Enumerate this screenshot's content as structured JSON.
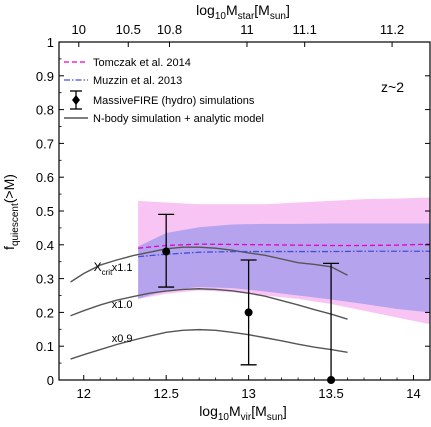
{
  "chart_data": {
    "type": "line",
    "xlabel": "log",
    "xlabel_sub": "10",
    "xlabel_main": "M",
    "xlabel_sub2": "vir",
    "xlabel_unit": "[M",
    "xlabel_unit_sub": "sun",
    "xlabel_end": "]",
    "top_xlabel": "log",
    "top_xlabel_sub": "10",
    "top_xlabel_main": "M",
    "top_xlabel_sub2": "star",
    "top_xlabel_unit": "[M",
    "top_xlabel_unit_sub": "sun",
    "top_xlabel_end": "]",
    "ylabel": "f",
    "ylabel_sub": "quiescent",
    "ylabel_end": "(>M)",
    "xlim": [
      11.85,
      14.1
    ],
    "ylim": [
      0,
      1
    ],
    "x_ticks": [
      "12",
      "12.5",
      "13",
      "13.5",
      "14"
    ],
    "x_tick_values": [
      12,
      12.5,
      13,
      13.5,
      14
    ],
    "y_ticks": [
      "0",
      "0.1",
      "0.2",
      "0.3",
      "0.4",
      "0.5",
      "0.6",
      "0.7",
      "0.8",
      "0.9",
      "1"
    ],
    "y_tick_values": [
      0,
      0.1,
      0.2,
      0.3,
      0.4,
      0.5,
      0.6,
      0.7,
      0.8,
      0.9,
      1
    ],
    "top_ticks": [
      "10",
      "10.5",
      "10.8",
      "11",
      "11.1",
      "11.2"
    ],
    "top_tick_positions": [
      11.97,
      12.27,
      12.52,
      12.99,
      13.34,
      13.87
    ],
    "annotation": "z~2",
    "legend_position": "top-left",
    "legend": [
      {
        "label": "Tomczak et al. 2014",
        "style": "dashed",
        "color": "#e400c8"
      },
      {
        "label": "Muzzin et al. 2013",
        "style": "dashdot",
        "color": "#4050d8"
      },
      {
        "label": "MassiveFIRE (hydro) simulations",
        "style": "errorbar",
        "color": "#000000"
      },
      {
        "label": "N-body simulation + analytic model",
        "style": "solid",
        "color": "#555555"
      }
    ],
    "series": [
      {
        "name": "Tomczak et al. 2014",
        "color": "#e400c8",
        "band_color": "#f5b0f0",
        "x": [
          12.33,
          12.5,
          12.7,
          12.9,
          13.1,
          13.3,
          13.5,
          13.7,
          13.9,
          14.1
        ],
        "y": [
          0.39,
          0.398,
          0.402,
          0.401,
          0.4,
          0.399,
          0.398,
          0.398,
          0.399,
          0.402
        ],
        "y_low": [
          0.24,
          0.255,
          0.265,
          0.26,
          0.25,
          0.24,
          0.225,
          0.205,
          0.185,
          0.165
        ],
        "y_high": [
          0.53,
          0.525,
          0.52,
          0.52,
          0.52,
          0.525,
          0.53,
          0.535,
          0.537,
          0.54
        ]
      },
      {
        "name": "Muzzin et al. 2013",
        "color": "#4050d8",
        "band_color": "#9f98ec",
        "x": [
          12.33,
          12.5,
          12.7,
          12.9,
          13.1,
          13.3,
          13.5,
          13.7,
          13.9,
          14.1
        ],
        "y": [
          0.365,
          0.372,
          0.378,
          0.38,
          0.38,
          0.38,
          0.38,
          0.381,
          0.381,
          0.381
        ],
        "y_low": [
          0.24,
          0.265,
          0.275,
          0.272,
          0.262,
          0.25,
          0.238,
          0.225,
          0.21,
          0.2
        ],
        "y_high": [
          0.395,
          0.435,
          0.452,
          0.46,
          0.462,
          0.462,
          0.463,
          0.463,
          0.463,
          0.463
        ]
      },
      {
        "name": "MassiveFIRE (hydro) simulations",
        "color": "#000000",
        "x": [
          12.5,
          13.0,
          13.5
        ],
        "y": [
          0.38,
          0.2,
          0.0
        ],
        "y_low": [
          0.275,
          0.045,
          0.0
        ],
        "y_high": [
          0.49,
          0.355,
          0.345
        ]
      },
      {
        "name": "x1.1",
        "color": "#555555",
        "x": [
          11.92,
          12.0,
          12.1,
          12.2,
          12.3,
          12.4,
          12.5,
          12.6,
          12.7,
          12.8,
          12.9,
          13.0,
          13.1,
          13.2,
          13.3,
          13.4,
          13.5,
          13.6
        ],
        "y": [
          0.29,
          0.315,
          0.34,
          0.355,
          0.368,
          0.378,
          0.388,
          0.393,
          0.393,
          0.39,
          0.384,
          0.376,
          0.369,
          0.358,
          0.347,
          0.342,
          0.335,
          0.31
        ]
      },
      {
        "name": "x1.0",
        "color": "#555555",
        "x": [
          11.92,
          12.0,
          12.1,
          12.2,
          12.3,
          12.4,
          12.5,
          12.6,
          12.7,
          12.8,
          12.9,
          13.0,
          13.1,
          13.2,
          13.3,
          13.4,
          13.5,
          13.6
        ],
        "y": [
          0.19,
          0.205,
          0.222,
          0.236,
          0.247,
          0.257,
          0.263,
          0.268,
          0.27,
          0.268,
          0.264,
          0.257,
          0.248,
          0.235,
          0.222,
          0.208,
          0.195,
          0.18
        ]
      },
      {
        "name": "x0.9",
        "color": "#555555",
        "x": [
          11.92,
          12.0,
          12.1,
          12.2,
          12.3,
          12.4,
          12.5,
          12.6,
          12.7,
          12.8,
          12.9,
          13.0,
          13.1,
          13.2,
          13.3,
          13.4,
          13.5,
          13.6
        ],
        "y": [
          0.062,
          0.075,
          0.09,
          0.105,
          0.118,
          0.13,
          0.141,
          0.147,
          0.149,
          0.147,
          0.141,
          0.134,
          0.125,
          0.116,
          0.106,
          0.097,
          0.09,
          0.082
        ]
      }
    ],
    "curve_labels": [
      {
        "text": "X",
        "sub": "crit",
        "x": 12.06,
        "y": 0.335
      },
      {
        "text": "x1.1",
        "x": 12.17,
        "y": 0.335
      },
      {
        "text": "x1.0",
        "x": 12.17,
        "y": 0.225
      },
      {
        "text": "x0.9",
        "x": 12.17,
        "y": 0.125
      }
    ]
  }
}
